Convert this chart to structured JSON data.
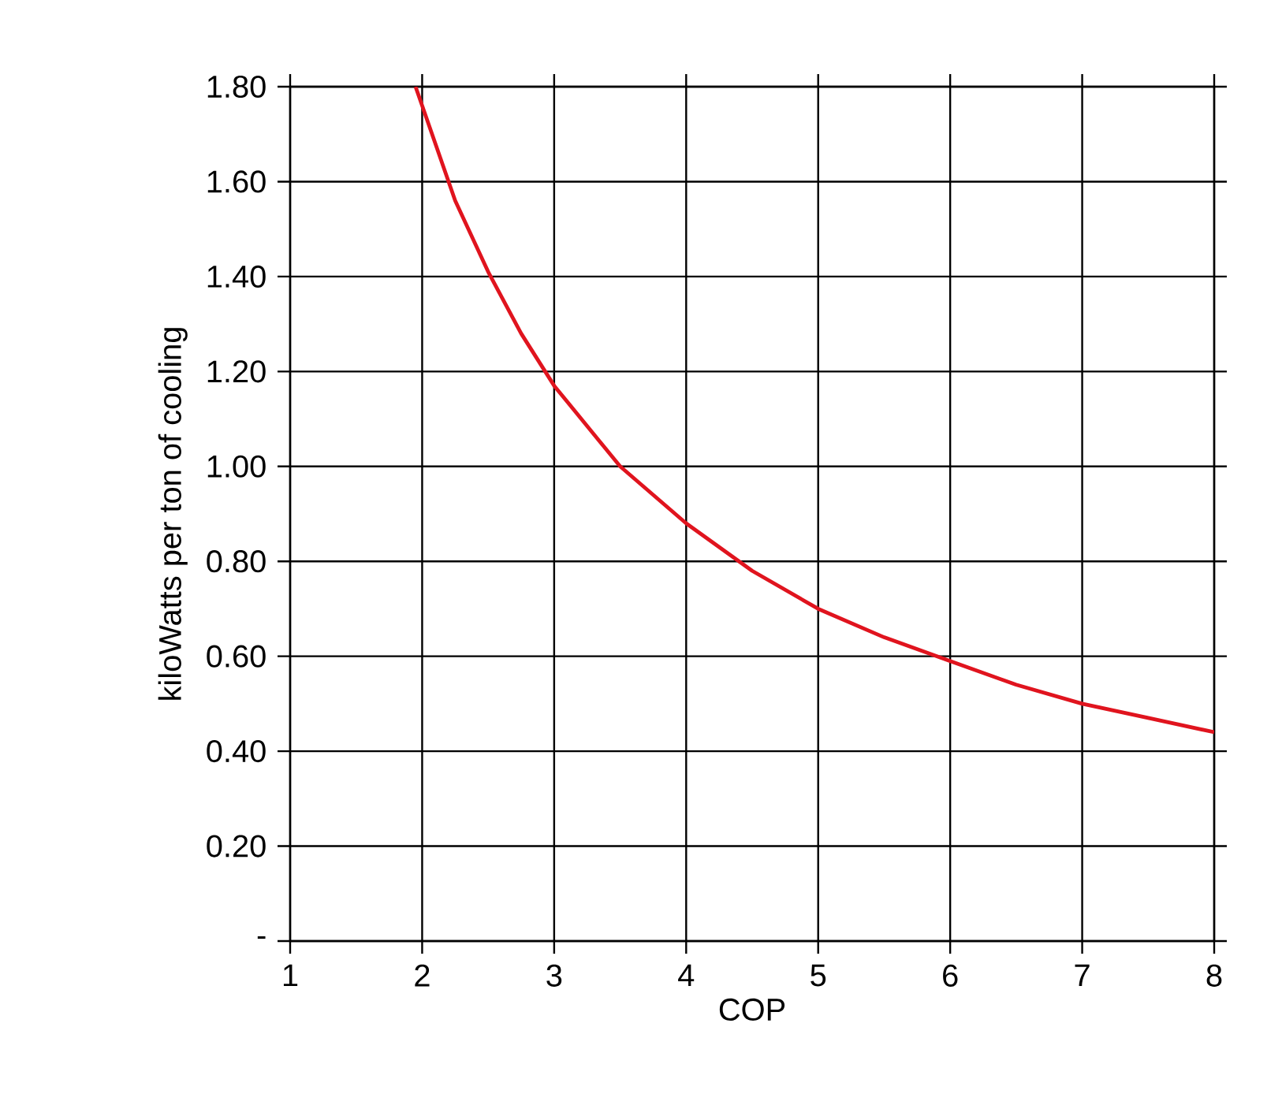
{
  "chart_data": {
    "type": "line",
    "xlabel": "COP",
    "ylabel": "kiloWatts per ton of cooling",
    "x": [
      1.95,
      2,
      2.25,
      2.5,
      2.75,
      3,
      3.5,
      4,
      4.5,
      5,
      5.5,
      6,
      6.5,
      7,
      7.5,
      8
    ],
    "series": [
      {
        "color": "#e0141e",
        "values": [
          1.8,
          1.76,
          1.56,
          1.41,
          1.28,
          1.17,
          1.0,
          0.88,
          0.78,
          0.7,
          0.64,
          0.59,
          0.54,
          0.5,
          0.47,
          0.44
        ]
      }
    ],
    "xlim": [
      1,
      8
    ],
    "xticks": [
      1,
      2,
      3,
      4,
      5,
      6,
      7,
      8
    ],
    "ylim": [
      0,
      1.8
    ],
    "yticks": [
      {
        "value": 0,
        "label": "-"
      },
      {
        "value": 0.2,
        "label": "0.20"
      },
      {
        "value": 0.4,
        "label": "0.40"
      },
      {
        "value": 0.6,
        "label": "0.60"
      },
      {
        "value": 0.8,
        "label": "0.80"
      },
      {
        "value": 1.0,
        "label": "1.00"
      },
      {
        "value": 1.2,
        "label": "1.20"
      },
      {
        "value": 1.4,
        "label": "1.40"
      },
      {
        "value": 1.6,
        "label": "1.60"
      },
      {
        "value": 1.8,
        "label": "1.80"
      }
    ],
    "grid": true,
    "marker": "none",
    "line_style": "solid"
  }
}
